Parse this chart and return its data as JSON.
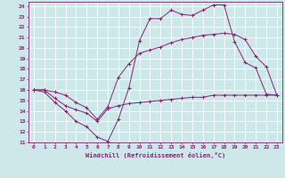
{
  "xlabel": "Windchill (Refroidissement éolien,°C)",
  "bg_color": "#cce8e8",
  "grid_color": "#ffffff",
  "line_color": "#882277",
  "xlim": [
    -0.5,
    23.5
  ],
  "ylim": [
    11,
    24.4
  ],
  "xticks": [
    0,
    1,
    2,
    3,
    4,
    5,
    6,
    7,
    8,
    9,
    10,
    11,
    12,
    13,
    14,
    15,
    16,
    17,
    18,
    19,
    20,
    21,
    22,
    23
  ],
  "yticks": [
    11,
    12,
    13,
    14,
    15,
    16,
    17,
    18,
    19,
    20,
    21,
    22,
    23,
    24
  ],
  "line1_x": [
    0,
    1,
    2,
    3,
    4,
    5,
    6,
    7,
    8,
    9,
    10,
    11,
    12,
    13,
    14,
    15,
    16,
    17,
    18,
    19,
    20,
    21,
    22,
    23
  ],
  "line1_y": [
    16,
    15.8,
    14.8,
    14.0,
    13.0,
    12.5,
    11.5,
    11.1,
    13.2,
    16.2,
    20.7,
    22.8,
    22.8,
    23.6,
    23.2,
    23.1,
    23.6,
    24.1,
    24.1,
    20.6,
    18.6,
    18.1,
    15.6,
    15.5
  ],
  "line2_x": [
    0,
    1,
    2,
    3,
    4,
    5,
    6,
    7,
    8,
    9,
    10,
    11,
    12,
    13,
    14,
    15,
    16,
    17,
    18,
    19,
    20,
    21,
    22,
    23
  ],
  "line2_y": [
    16,
    16,
    15.8,
    15.5,
    14.8,
    14.3,
    13.2,
    14.4,
    17.2,
    18.5,
    19.5,
    19.8,
    20.1,
    20.5,
    20.8,
    21.0,
    21.2,
    21.3,
    21.4,
    21.3,
    20.8,
    19.2,
    18.2,
    15.5
  ],
  "line3_x": [
    0,
    1,
    2,
    3,
    4,
    5,
    6,
    7,
    8,
    9,
    10,
    11,
    12,
    13,
    14,
    15,
    16,
    17,
    18,
    19,
    20,
    21,
    22,
    23
  ],
  "line3_y": [
    16,
    16,
    15.2,
    14.5,
    14.1,
    13.8,
    13.0,
    14.2,
    14.5,
    14.7,
    14.8,
    14.9,
    15.0,
    15.1,
    15.2,
    15.3,
    15.3,
    15.5,
    15.5,
    15.5,
    15.5,
    15.5,
    15.5,
    15.5
  ]
}
